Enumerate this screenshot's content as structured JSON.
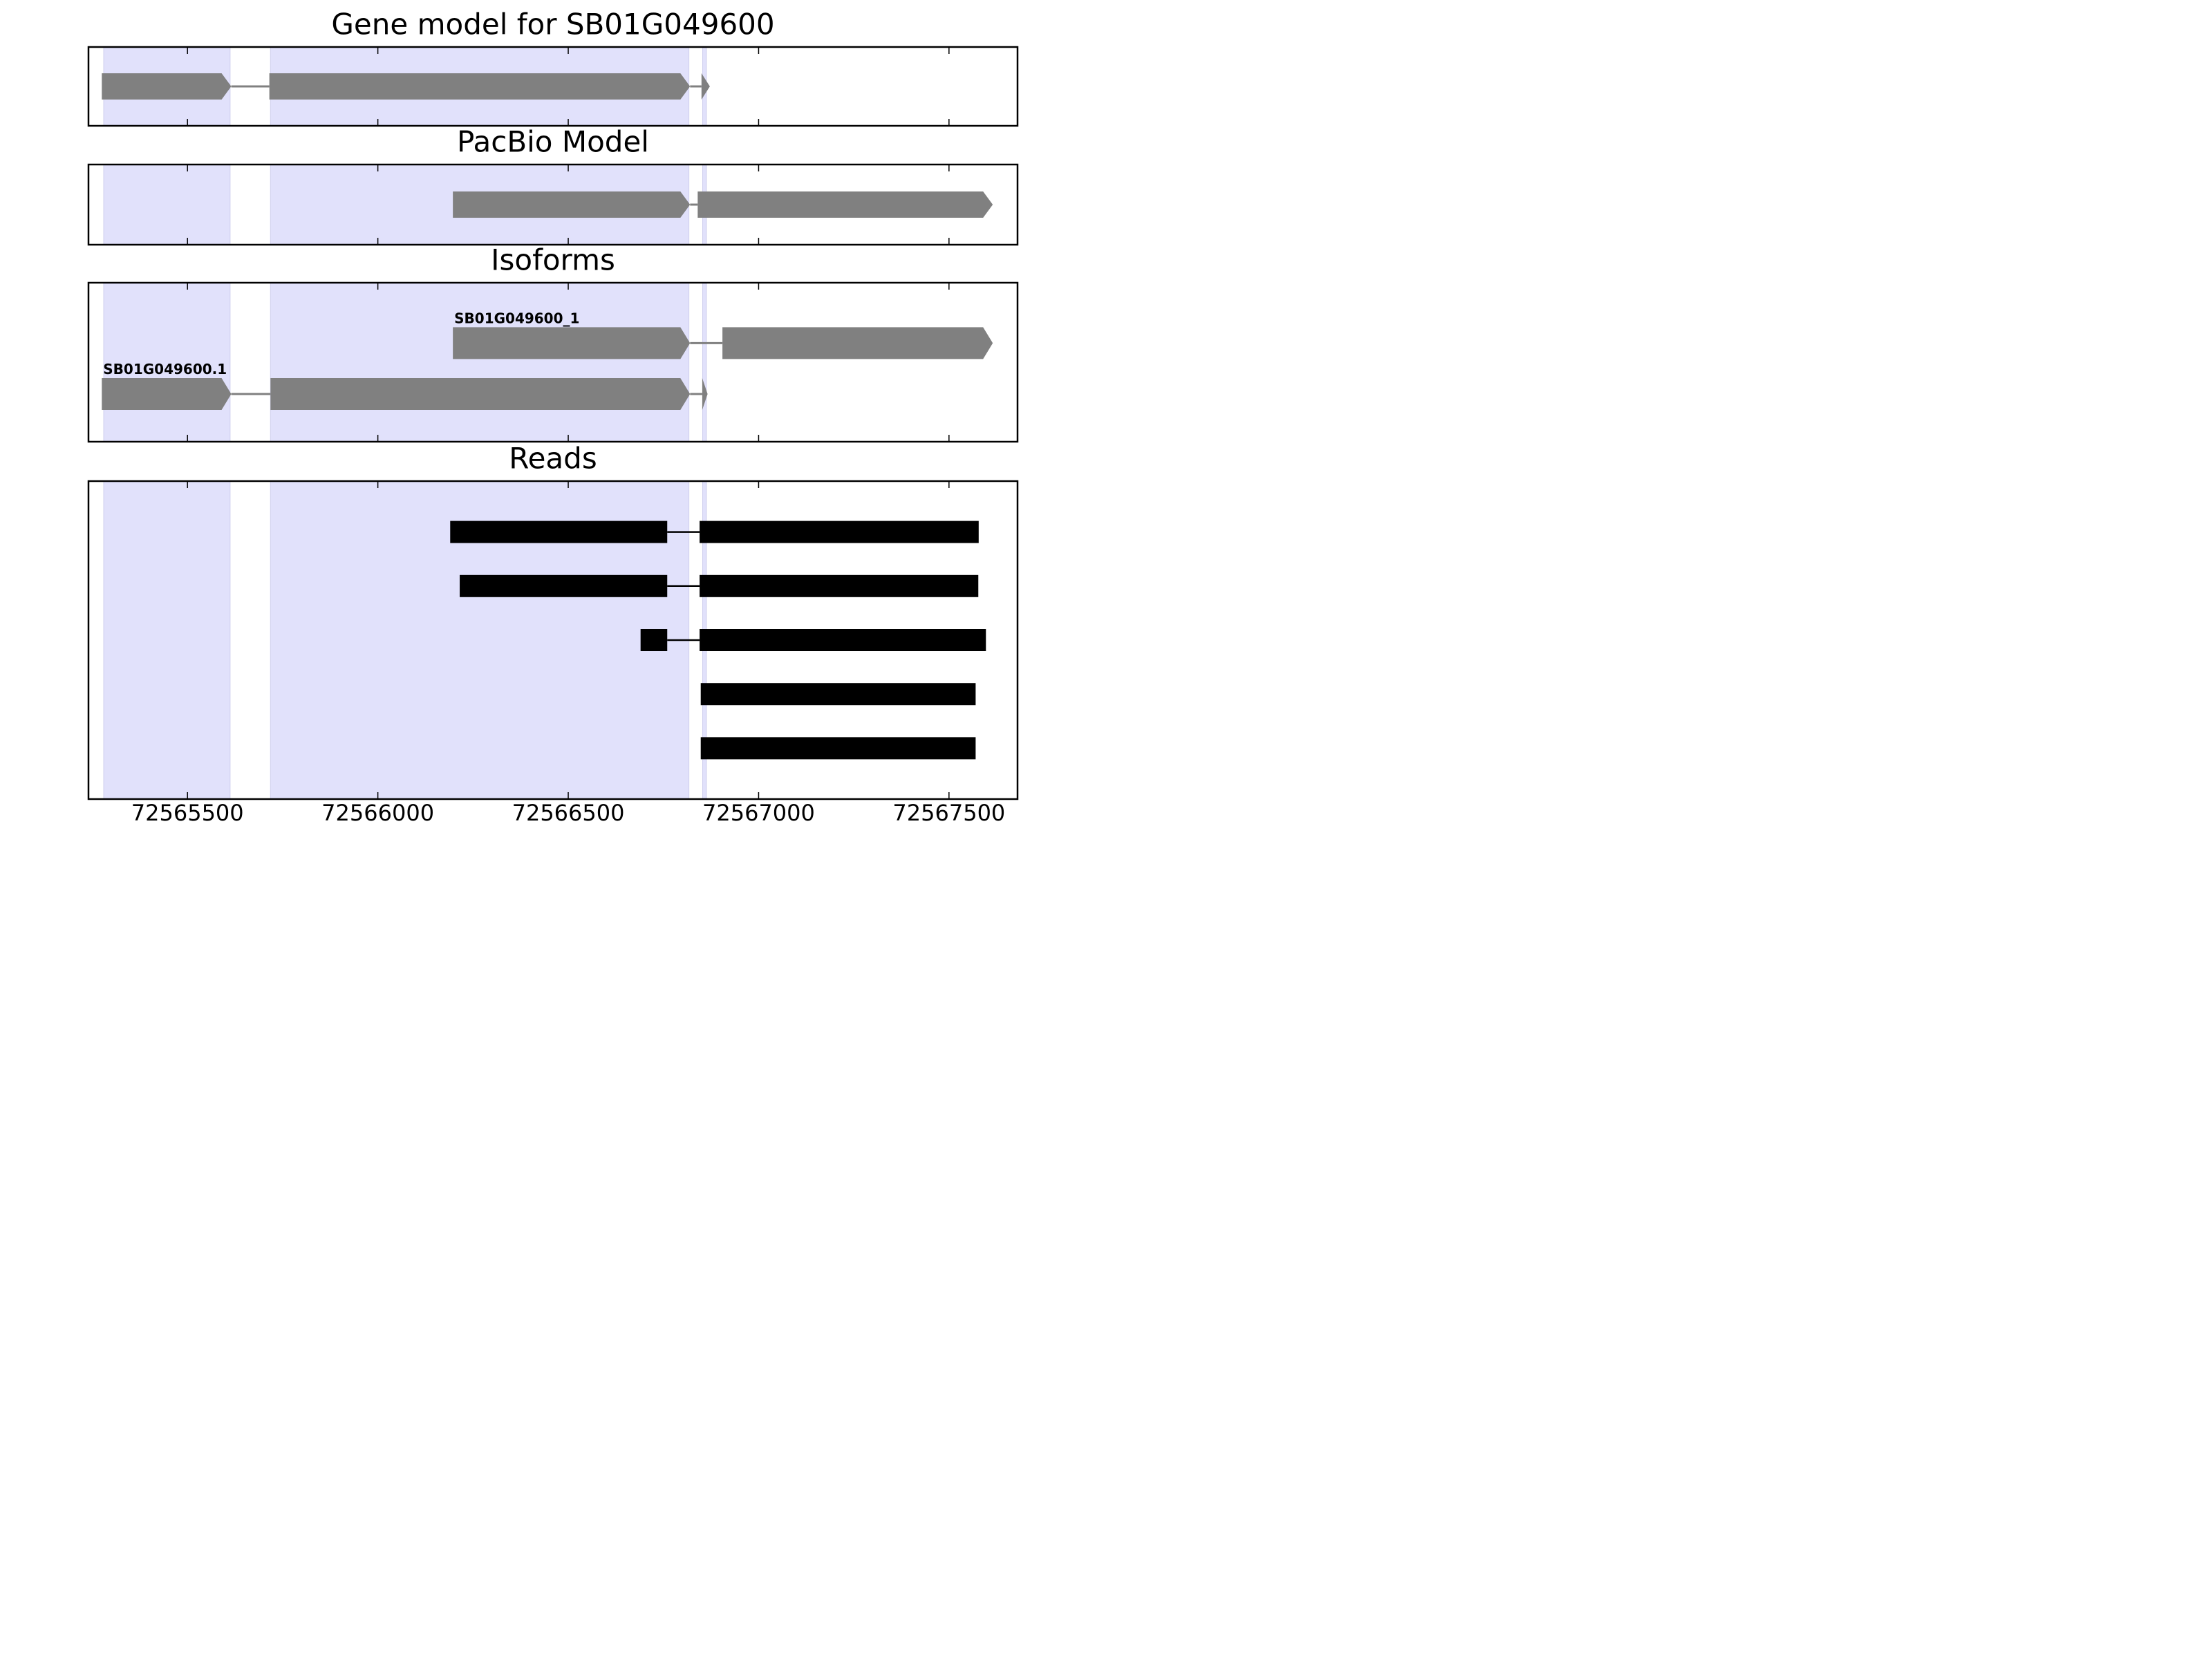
{
  "chart_data": {
    "type": "gene-structure",
    "x_axis": {
      "xlim": [
        72565240,
        72567680
      ],
      "ticks": [
        72565500,
        72566000,
        72566500,
        72567000,
        72567500
      ],
      "tick_labels": [
        "72565500",
        "72566000",
        "72566500",
        "72567000",
        "72567500"
      ]
    },
    "highlight_regions": [
      {
        "start": 72565280,
        "end": 72565612
      },
      {
        "start": 72565718,
        "end": 72566817
      },
      {
        "start": 72566853,
        "end": 72566863
      }
    ],
    "panels": [
      {
        "title": "Gene model for SB01G049600",
        "features": [
          {
            "label": "",
            "strand": "+",
            "y": 0.5,
            "exons": [
              [
                72565275,
                72565615
              ],
              [
                72565715,
                72566820
              ],
              [
                72566850,
                72566872
              ]
            ]
          }
        ]
      },
      {
        "title": "PacBio Model",
        "features": [
          {
            "label": "",
            "strand": "+",
            "y": 0.5,
            "exons": [
              [
                72566197,
                72566820
              ],
              [
                72566840,
                72567615
              ]
            ]
          }
        ]
      },
      {
        "title": "Isoforms",
        "features": [
          {
            "label": "SB01G049600_1",
            "strand": "+",
            "y": 0.62,
            "exons": [
              [
                72566197,
                72566820
              ],
              [
                72566905,
                72567615
              ]
            ]
          },
          {
            "label": "SB01G049600.1",
            "strand": "+",
            "y": 0.3,
            "exons": [
              [
                72565275,
                72565615
              ],
              [
                72565718,
                72566820
              ],
              [
                72566852,
                72566866
              ]
            ]
          }
        ]
      },
      {
        "title": "Reads",
        "reads": [
          {
            "y": 0.84,
            "blocks": [
              [
                72566190,
                72566760
              ],
              [
                72566845,
                72567578
              ]
            ]
          },
          {
            "y": 0.67,
            "blocks": [
              [
                72566215,
                72566760
              ],
              [
                72566845,
                72567577
              ]
            ]
          },
          {
            "y": 0.5,
            "blocks": [
              [
                72566690,
                72566760
              ],
              [
                72566845,
                72567597
              ]
            ]
          },
          {
            "y": 0.33,
            "blocks": [
              [
                72566848,
                72567570
              ]
            ]
          },
          {
            "y": 0.16,
            "blocks": [
              [
                72566848,
                72567570
              ]
            ]
          }
        ]
      }
    ],
    "colors": {
      "model": "#808080",
      "reads": "#000000",
      "highlight": "#e1e1fb"
    }
  }
}
